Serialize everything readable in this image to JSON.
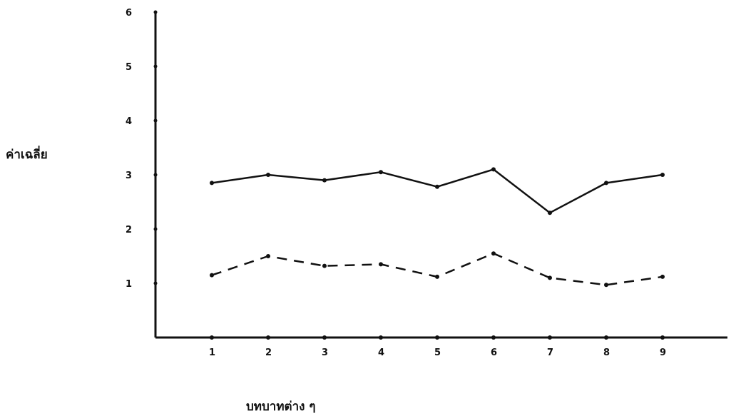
{
  "chart_data": {
    "type": "line",
    "title": "",
    "xlabel": "บทบาทต่าง ๆ",
    "ylabel": "ค่าเฉลี่ย",
    "x": [
      1,
      2,
      3,
      4,
      5,
      6,
      7,
      8,
      9
    ],
    "x_tick_labels": [
      "1",
      "2",
      "3",
      "4",
      "5",
      "6",
      "7",
      "8",
      "9"
    ],
    "y_tick_labels": [
      "1",
      "2",
      "3",
      "4",
      "5",
      "6"
    ],
    "ylim": [
      0,
      6
    ],
    "xlim": [
      0,
      10
    ],
    "grid": false,
    "legend": "none",
    "series": [
      {
        "style": "solid",
        "color": "#111111",
        "values": [
          2.85,
          3.0,
          2.9,
          3.05,
          2.78,
          3.1,
          2.3,
          2.85,
          3.0
        ]
      },
      {
        "style": "dashed",
        "color": "#111111",
        "values": [
          1.15,
          1.5,
          1.32,
          1.35,
          1.12,
          1.55,
          1.1,
          0.97,
          1.12
        ]
      }
    ]
  }
}
